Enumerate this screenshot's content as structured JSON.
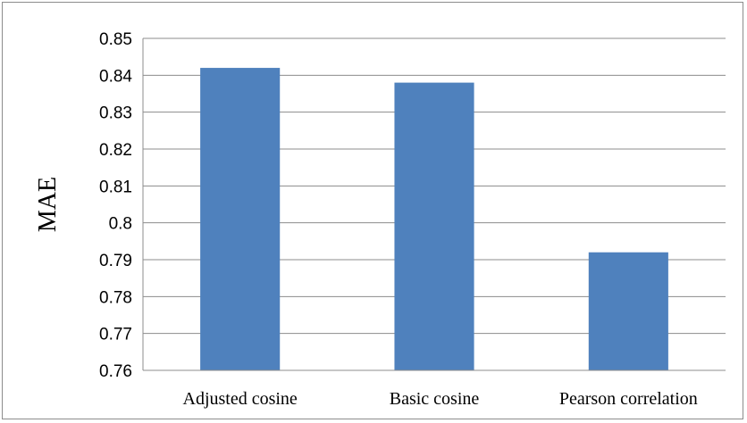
{
  "chart_data": {
    "type": "bar",
    "categories": [
      "Adjusted cosine",
      "Basic cosine",
      "Pearson correlation"
    ],
    "values": [
      0.842,
      0.838,
      0.792
    ],
    "xlabel": "",
    "ylabel": "MAE",
    "ylim": [
      0.76,
      0.85
    ],
    "yticks": [
      "0.76",
      "0.77",
      "0.78",
      "0.79",
      "0.8",
      "0.81",
      "0.82",
      "0.83",
      "0.84",
      "0.85"
    ],
    "grid": true,
    "legend": "none",
    "bar_color": "#4F81BD"
  }
}
